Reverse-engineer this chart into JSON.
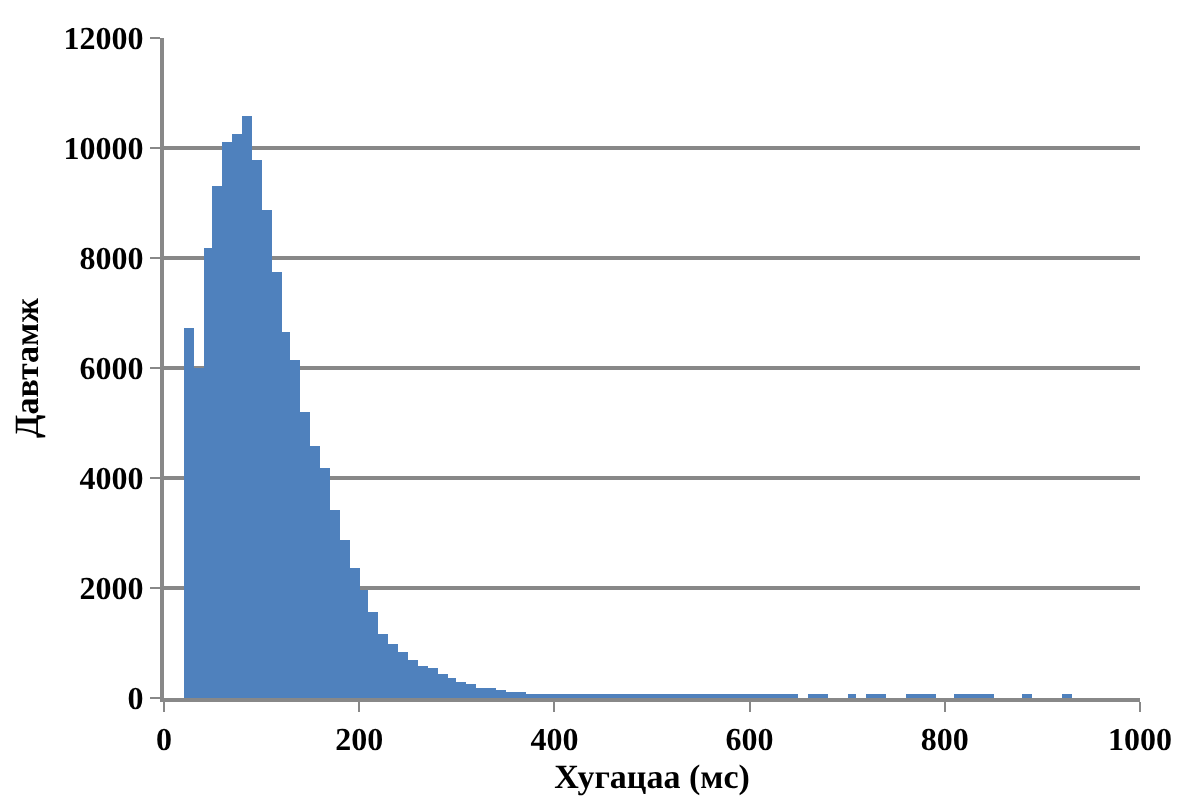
{
  "chart_data": {
    "type": "histogram",
    "xlabel": "Хугацаа (мс)",
    "ylabel": "Давтамж",
    "color": "#4f81bd",
    "bins": [
      20,
      30,
      40,
      50,
      60,
      70,
      80,
      90,
      100,
      110,
      120,
      130,
      140,
      150,
      160,
      170,
      180,
      190,
      200,
      210,
      220,
      230,
      240,
      250,
      260,
      270,
      280,
      290,
      300,
      310,
      320,
      330,
      340,
      350,
      360,
      370,
      380,
      390,
      400,
      410,
      420,
      430,
      440,
      450,
      460,
      470,
      480,
      490,
      500,
      510,
      520,
      530,
      540,
      550,
      560,
      570,
      580,
      590,
      600,
      610,
      620,
      630,
      640,
      650,
      660,
      670,
      680,
      690,
      700,
      710,
      720,
      730,
      740,
      750,
      760,
      770,
      780,
      790,
      800,
      810,
      820,
      830,
      840,
      850,
      860,
      870,
      880,
      890,
      900,
      910,
      920,
      930
    ],
    "values": [
      6740,
      6010,
      8200,
      9300,
      10100,
      10260,
      10570,
      9780,
      8880,
      7760,
      6670,
      6140,
      5200,
      4600,
      4200,
      3420,
      2890,
      2370,
      1970,
      1550,
      1180,
      990,
      830,
      700,
      590,
      530,
      440,
      360,
      300,
      240,
      200,
      170,
      150,
      120,
      100,
      90,
      90,
      90,
      90,
      90,
      90,
      90,
      90,
      90,
      90,
      90,
      90,
      90,
      90,
      90,
      90,
      90,
      90,
      90,
      90,
      90,
      90,
      90,
      90,
      90,
      90,
      90,
      60,
      0,
      60,
      60,
      0,
      0,
      60,
      0,
      60,
      60,
      0,
      0,
      60,
      60,
      60,
      0,
      0,
      60,
      60,
      60,
      60,
      0,
      0,
      0,
      60,
      0,
      0,
      0,
      60
    ],
    "xlim": [
      0,
      1000
    ],
    "xticks": [
      0,
      200,
      400,
      600,
      800,
      1000
    ],
    "ylim": [
      0,
      12000
    ],
    "yticks": [
      0,
      2000,
      4000,
      6000,
      8000,
      10000,
      12000
    ],
    "grid": "y"
  }
}
